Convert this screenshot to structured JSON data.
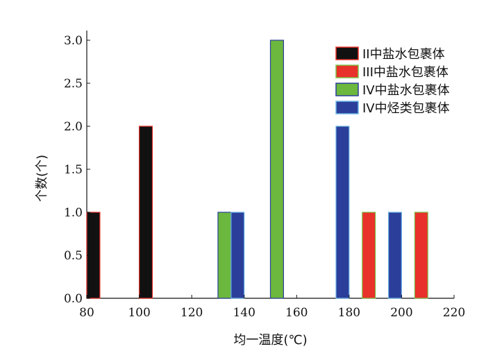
{
  "chart_data": {
    "type": "bar",
    "xlabel": "均一温度(℃)",
    "ylabel": "个数(个)",
    "xlim": [
      80,
      220
    ],
    "ylim": [
      0,
      3.0
    ],
    "xticks": [
      "80",
      "100",
      "120",
      "140",
      "160",
      "180",
      "200",
      "220"
    ],
    "yticks": [
      "0.0",
      "0.5",
      "1.0",
      "1.5",
      "2.0",
      "2.5",
      "3.0"
    ],
    "legend_position": "top-right",
    "grid": false,
    "series": [
      {
        "name": "II中盐水包裹体",
        "color": "#111111",
        "stroke": "#e8312a",
        "points": [
          {
            "x": 82.5,
            "y": 1.0
          },
          {
            "x": 102.5,
            "y": 2.0
          }
        ]
      },
      {
        "name": "III中盐水包裹体",
        "color": "#e8312a",
        "stroke": "#7dc24b",
        "points": [
          {
            "x": 187.5,
            "y": 1.0
          },
          {
            "x": 207.5,
            "y": 1.0
          }
        ]
      },
      {
        "name": "IV中盐水包裹体",
        "color": "#6cb73e",
        "stroke": "#2b3f9a",
        "points": [
          {
            "x": 132.5,
            "y": 1.0
          },
          {
            "x": 152.5,
            "y": 3.0
          }
        ]
      },
      {
        "name": "IV中烃类包裹体",
        "color": "#2b3f9a",
        "stroke": "#6fb6e8",
        "points": [
          {
            "x": 137.5,
            "y": 1.0
          },
          {
            "x": 177.5,
            "y": 2.0
          },
          {
            "x": 197.5,
            "y": 1.0
          }
        ]
      }
    ],
    "bar_width": 5
  }
}
